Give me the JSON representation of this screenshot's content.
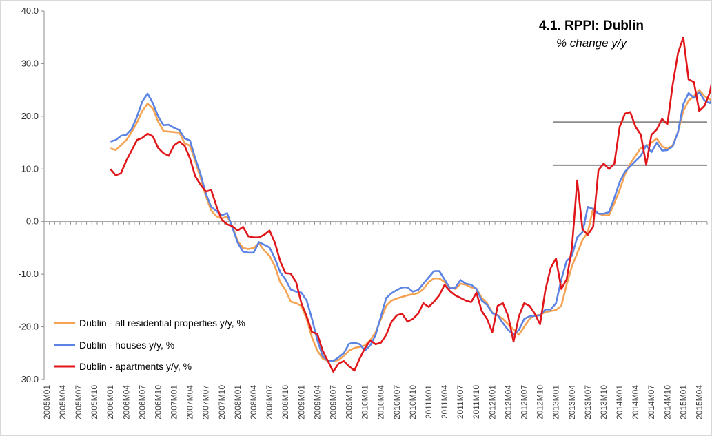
{
  "chart_data": {
    "type": "line",
    "title": "4.1. RPPI: Dublin",
    "subtitle": "% change y/y",
    "ylim": [
      -30,
      40
    ],
    "yticks": [
      "40.0",
      "30.0",
      "20.0",
      "10.0",
      "0.0",
      "-10.0",
      "-20.0",
      "-30.0"
    ],
    "yticks_values": [
      40,
      30,
      20,
      10,
      0,
      -10,
      -20,
      -30
    ],
    "x_start": "2005M01",
    "x_end": "2015M05",
    "xtick_labels": [
      "2005M01",
      "2005M04",
      "2005M07",
      "2005M10",
      "2006M01",
      "2006M04",
      "2006M07",
      "2006M10",
      "2007M01",
      "2007M04",
      "2007M07",
      "2007M10",
      "2008M01",
      "2008M04",
      "2008M07",
      "2008M10",
      "2009M01",
      "2009M04",
      "2009M07",
      "2009M10",
      "2010M01",
      "2010M04",
      "2010M07",
      "2010M10",
      "2011M01",
      "2011M04",
      "2011M07",
      "2011M10",
      "2012M01",
      "2012M04",
      "2012M07",
      "2012M10",
      "2013M01",
      "2013M04",
      "2013M07",
      "2013M10",
      "2014M01",
      "2014M04",
      "2014M07",
      "2014M10",
      "2015M01",
      "2015M04"
    ],
    "grid": false,
    "legend_position": "bottom-left",
    "reference_lines": [
      {
        "y": 18.9,
        "x_from": "2013M01",
        "x_to": "2015M05",
        "color": "#8c8c8c"
      },
      {
        "y": 10.7,
        "x_from": "2013M01",
        "x_to": "2015M05",
        "color": "#8c8c8c"
      }
    ],
    "series": [
      {
        "name": "Dublin - all residential properties y/y, %",
        "color": "#f5a251",
        "start": "2006M01",
        "values": [
          13.9,
          13.6,
          14.5,
          15.5,
          17.0,
          18.8,
          21.0,
          22.4,
          21.5,
          19.0,
          17.2,
          17.1,
          17.0,
          16.9,
          14.9,
          14.4,
          11.5,
          8.3,
          4.8,
          2.1,
          1.0,
          0.6,
          1.0,
          -0.9,
          -3.7,
          -5.0,
          -5.2,
          -5.0,
          -4.1,
          -5.5,
          -6.5,
          -8.5,
          -11.5,
          -13.0,
          -15.2,
          -15.5,
          -16.0,
          -18.5,
          -22.0,
          -24.5,
          -26.0,
          -26.5,
          -26.5,
          -26.3,
          -25.5,
          -24.5,
          -24.0,
          -23.8,
          -23.5,
          -22.5,
          -21.0,
          -18.5,
          -16.0,
          -15.0,
          -14.6,
          -14.3,
          -14.0,
          -13.8,
          -13.6,
          -12.8,
          -11.5,
          -10.8,
          -10.8,
          -11.5,
          -12.5,
          -12.8,
          -11.8,
          -12.0,
          -12.5,
          -12.7,
          -14.5,
          -15.5,
          -17.3,
          -17.8,
          -18.5,
          -19.5,
          -20.5,
          -21.5,
          -20.0,
          -18.5,
          -17.8,
          -17.7,
          -17.2,
          -17.0,
          -16.8,
          -16.0,
          -12.0,
          -8.5,
          -6.0,
          -3.5,
          -2.0,
          2.5,
          1.5,
          1.2,
          1.2,
          3.5,
          6.0,
          9.0,
          11.0,
          12.5,
          14.0,
          14.3,
          15.0,
          15.8,
          14.3,
          13.8,
          14.5,
          17.0,
          21.0,
          23.0,
          23.8,
          25.0,
          23.8,
          23.2,
          23.0,
          22.0,
          22.0,
          21.5,
          21.8,
          22.9
        ]
      },
      {
        "name": "Dublin - houses y/y, %",
        "color": "#5b83e4",
        "start": "2006M01",
        "values": [
          15.2,
          15.5,
          16.3,
          16.5,
          17.6,
          19.9,
          22.8,
          24.3,
          22.5,
          20.0,
          18.3,
          18.4,
          17.8,
          17.4,
          15.8,
          15.4,
          12.0,
          9.0,
          5.3,
          2.8,
          2.0,
          1.2,
          1.6,
          -1.2,
          -4.0,
          -5.7,
          -5.9,
          -5.9,
          -3.9,
          -4.4,
          -4.9,
          -7.0,
          -9.6,
          -11.0,
          -12.9,
          -13.3,
          -13.5,
          -15.0,
          -18.5,
          -22.5,
          -25.5,
          -26.5,
          -26.5,
          -25.8,
          -25.0,
          -23.2,
          -23.0,
          -23.3,
          -24.5,
          -23.5,
          -21.5,
          -18.0,
          -14.5,
          -13.6,
          -13.0,
          -12.5,
          -12.5,
          -13.3,
          -13.0,
          -11.8,
          -10.6,
          -9.4,
          -9.4,
          -11.0,
          -12.7,
          -12.6,
          -11.1,
          -11.8,
          -12.0,
          -12.8,
          -15.0,
          -15.8,
          -17.4,
          -17.8,
          -19.3,
          -20.6,
          -21.5,
          -20.6,
          -18.5,
          -18.0,
          -17.9,
          -17.8,
          -16.7,
          -16.7,
          -15.5,
          -11.0,
          -7.5,
          -6.5,
          -3.0,
          -2.0,
          2.8,
          2.4,
          1.5,
          1.5,
          1.8,
          4.5,
          7.5,
          9.5,
          10.5,
          11.5,
          12.5,
          14.5,
          13.2,
          15.0,
          13.5,
          13.6,
          14.3,
          17.0,
          22.3,
          24.4,
          23.5,
          24.6,
          23.0,
          22.5,
          24.2,
          22.5,
          22.2,
          21.8,
          21.3,
          21.0,
          21.9
        ]
      },
      {
        "name": "Dublin - apartments y/y, %",
        "color": "#e0161a",
        "start": "2006M01",
        "values": [
          10.0,
          8.8,
          9.2,
          11.6,
          13.5,
          15.5,
          15.9,
          16.7,
          16.2,
          14.0,
          13.0,
          12.5,
          14.5,
          15.2,
          14.4,
          12.0,
          8.6,
          7.0,
          5.7,
          6.0,
          2.9,
          0.3,
          -0.5,
          -0.9,
          -1.7,
          -1.0,
          -2.8,
          -3.0,
          -3.0,
          -2.5,
          -1.7,
          -4.0,
          -7.5,
          -9.8,
          -9.9,
          -11.5,
          -15.5,
          -18.0,
          -21.0,
          -21.3,
          -24.5,
          -26.5,
          -28.5,
          -27.0,
          -26.5,
          -27.5,
          -28.3,
          -26.0,
          -24.0,
          -22.6,
          -23.3,
          -23.0,
          -21.5,
          -19.0,
          -17.8,
          -17.5,
          -19.0,
          -18.5,
          -17.5,
          -15.5,
          -16.2,
          -15.2,
          -14.0,
          -12.0,
          -13.2,
          -14.0,
          -14.5,
          -15.0,
          -15.3,
          -13.5,
          -17.0,
          -18.5,
          -21.0,
          -16.0,
          -15.5,
          -18.0,
          -22.8,
          -18.0,
          -15.5,
          -16.0,
          -17.5,
          -19.5,
          -13.0,
          -8.8,
          -7.0,
          -12.8,
          -11.0,
          -5.0,
          7.8,
          -1.5,
          -2.5,
          -1.0,
          9.8,
          11.0,
          10.0,
          11.0,
          18.0,
          20.5,
          20.8,
          18.0,
          16.5,
          10.8,
          16.5,
          17.5,
          19.5,
          18.5,
          26.0,
          32.0,
          35.0,
          27.0,
          26.5,
          21.0,
          22.0,
          24.5,
          29.8
        ]
      }
    ]
  }
}
